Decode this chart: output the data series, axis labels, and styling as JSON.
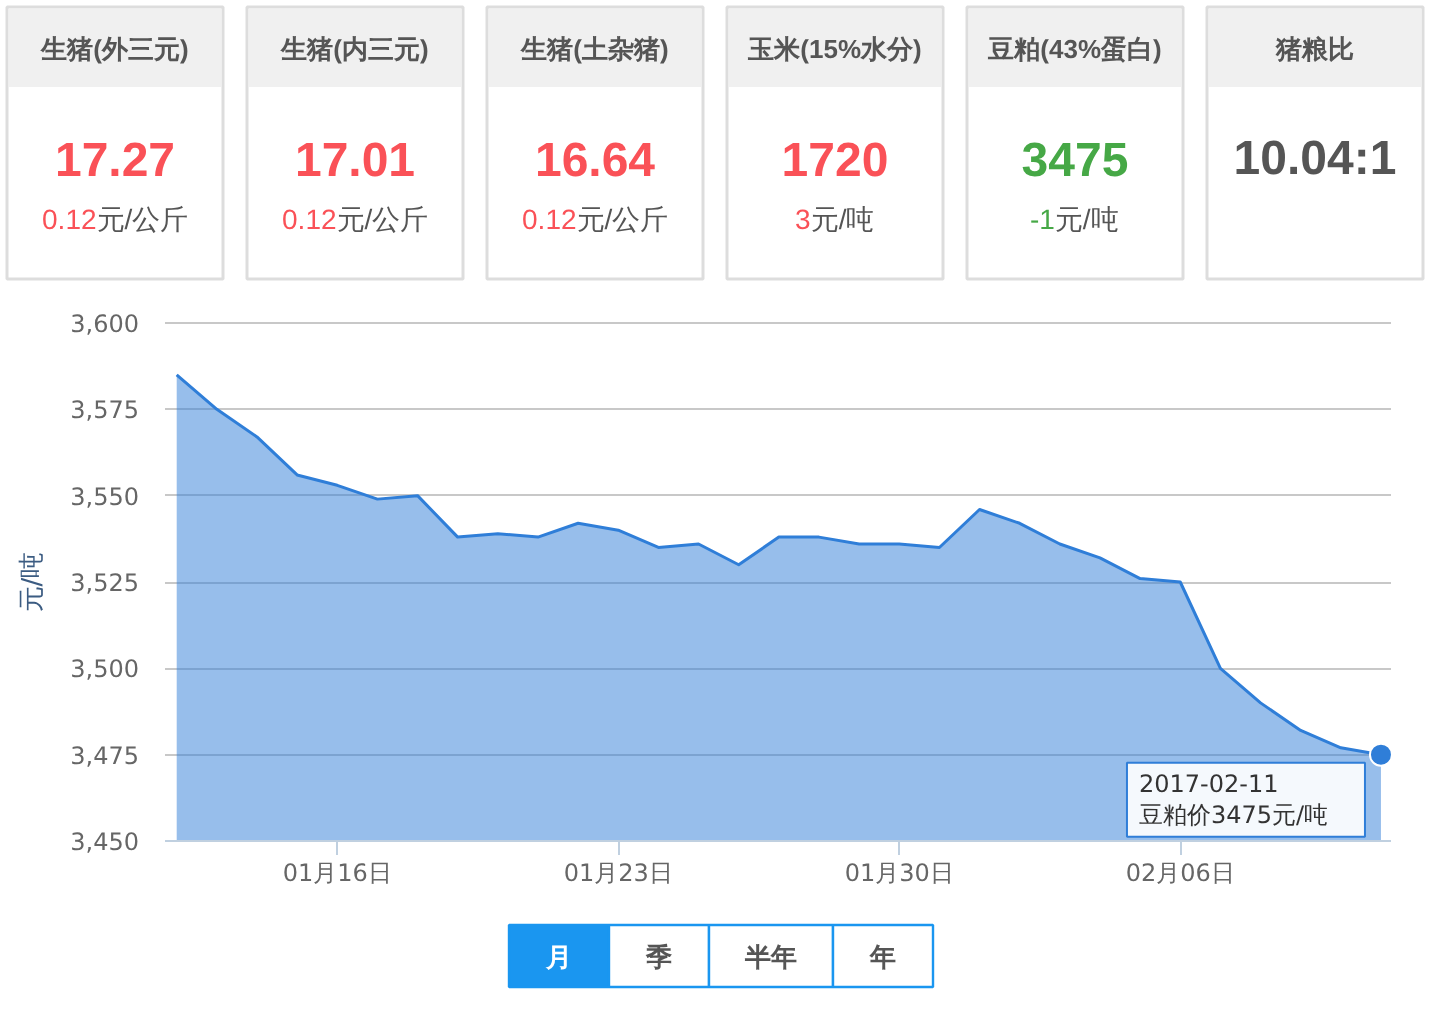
{
  "chart_data": [
    {
      "type": "other",
      "categories": [
        "生猪(外三元)",
        "生猪(内三元)",
        "生猪(土杂猪)",
        "玉米(15%水分)",
        "豆粕(43%蛋白)",
        "猪粮比"
      ],
      "value_labels": [
        "17.27",
        "17.01",
        "16.64",
        "1720",
        "3475",
        "10.04:1"
      ],
      "annotations": [
        "0.12元/公斤",
        "0.12元/公斤",
        "0.12元/公斤",
        "3元/吨",
        "-1元/吨"
      ]
    },
    {
      "type": "area",
      "ylabel": "元/吨",
      "x": [
        "2017-01-12",
        "2017-01-13",
        "2017-01-14",
        "2017-01-15",
        "2017-01-16",
        "2017-01-17",
        "2017-01-18",
        "2017-01-19",
        "2017-01-20",
        "2017-01-21",
        "2017-01-22",
        "2017-01-23",
        "2017-01-24",
        "2017-01-25",
        "2017-01-26",
        "2017-01-27",
        "2017-01-28",
        "2017-01-29",
        "2017-01-30",
        "2017-01-31",
        "2017-02-01",
        "2017-02-02",
        "2017-02-03",
        "2017-02-04",
        "2017-02-05",
        "2017-02-06",
        "2017-02-07",
        "2017-02-08",
        "2017-02-09",
        "2017-02-10",
        "2017-02-11"
      ],
      "series": [
        {
          "color": "#2f7ed8",
          "values": [
            3585,
            3575,
            3567,
            3556,
            3553,
            3549,
            3550,
            3538,
            3539,
            3538,
            3542,
            3540,
            3535,
            3536,
            3530,
            3538,
            3538,
            3536,
            3536,
            3535,
            3546,
            3542,
            3536,
            3532,
            3526,
            3525,
            3500,
            3490,
            3482,
            3477,
            3475
          ]
        }
      ],
      "xlim": [
        "2017-01-11T17:00",
        "2017-02-11T06:00"
      ],
      "ylim": [
        3450,
        3600
      ],
      "xticks": [
        {
          "value": "2017-01-16",
          "label": "01月16日"
        },
        {
          "value": "2017-01-23",
          "label": "01月23日"
        },
        {
          "value": "2017-01-30",
          "label": "01月30日"
        },
        {
          "value": "2017-02-06",
          "label": "02月06日"
        }
      ],
      "yticks": [
        {
          "value": 3450,
          "label": "3,450"
        },
        {
          "value": 3475,
          "label": "3,475"
        },
        {
          "value": 3500,
          "label": "3,500"
        },
        {
          "value": 3525,
          "label": "3,525"
        },
        {
          "value": 3550,
          "label": "3,550"
        },
        {
          "value": 3575,
          "label": "3,575"
        },
        {
          "value": 3600,
          "label": "3,600"
        }
      ],
      "grid": "y",
      "annotations": [
        {
          "text": "2017-02-11\n豆粕价3475元/吨",
          "x": "2017-02-11",
          "y": 3475
        }
      ]
    },
    {
      "type": "other",
      "categories": [
        "月",
        "季",
        "半年",
        "年"
      ],
      "colors": [
        "#1a96f0",
        "#ffffff",
        "#ffffff",
        "#ffffff"
      ]
    }
  ]
}
